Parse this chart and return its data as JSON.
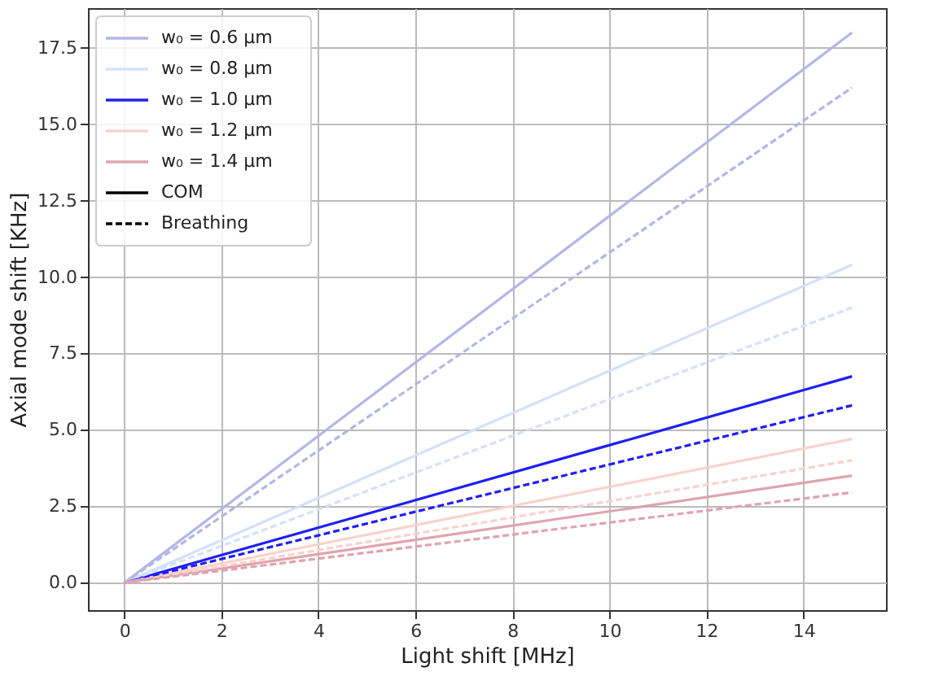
{
  "chart_data": {
    "type": "line",
    "xlabel": "Light shift [MHz]",
    "ylabel": "Axial mode shift [KHz]",
    "x": [
      0,
      15
    ],
    "series": [
      {
        "name": "w₀ = 0.6 μm",
        "color": "#b3b6e6",
        "values": [
          0,
          18.0
        ],
        "line_style": "solid"
      },
      {
        "name": "w₀ = 0.8 μm",
        "color": "#d4e0fb",
        "values": [
          0,
          10.4
        ],
        "line_style": "solid"
      },
      {
        "name": "w₀ = 1.0 μm",
        "color": "#1f1ff5",
        "values": [
          0,
          6.75
        ],
        "line_style": "solid"
      },
      {
        "name": "w₀ = 1.2 μm",
        "color": "#f9d2cc",
        "values": [
          0,
          4.7
        ],
        "line_style": "solid"
      },
      {
        "name": "w₀ = 1.4 μm",
        "color": "#e0a3ae",
        "values": [
          0,
          3.5
        ],
        "line_style": "solid"
      },
      {
        "color": "#b3b6e6",
        "values": [
          0,
          16.2
        ],
        "line_style": "dashed"
      },
      {
        "color": "#d4e0fb",
        "values": [
          0,
          9.0
        ],
        "line_style": "dashed"
      },
      {
        "color": "#1f1ff5",
        "values": [
          0,
          5.8
        ],
        "line_style": "dashed"
      },
      {
        "color": "#f9d2cc",
        "values": [
          0,
          4.0
        ],
        "line_style": "dashed"
      },
      {
        "color": "#e0a3ae",
        "values": [
          0,
          2.95
        ],
        "line_style": "dashed"
      },
      {
        "name": "COM",
        "color": "#000000",
        "values": [
          null,
          null
        ],
        "line_style": "solid"
      },
      {
        "name": "Breathing",
        "color": "#000000",
        "values": [
          null,
          null
        ],
        "line_style": "dashed"
      }
    ],
    "xlim": [
      -0.75,
      15.7
    ],
    "ylim": [
      -0.9,
      18.8
    ],
    "xticks": [
      0,
      2,
      4,
      6,
      8,
      10,
      12,
      14
    ],
    "yticks": [
      {
        "value": 0,
        "label": "0.0"
      },
      {
        "value": 2.5,
        "label": "2.5"
      },
      {
        "value": 5,
        "label": "5.0"
      },
      {
        "value": 7.5,
        "label": "7.5"
      },
      {
        "value": 10,
        "label": "10.0"
      },
      {
        "value": 12.5,
        "label": "12.5"
      },
      {
        "value": 15,
        "label": "15.0"
      },
      {
        "value": 17.5,
        "label": "17.5"
      }
    ],
    "grid": true,
    "legend": "top left",
    "marker": "none"
  }
}
